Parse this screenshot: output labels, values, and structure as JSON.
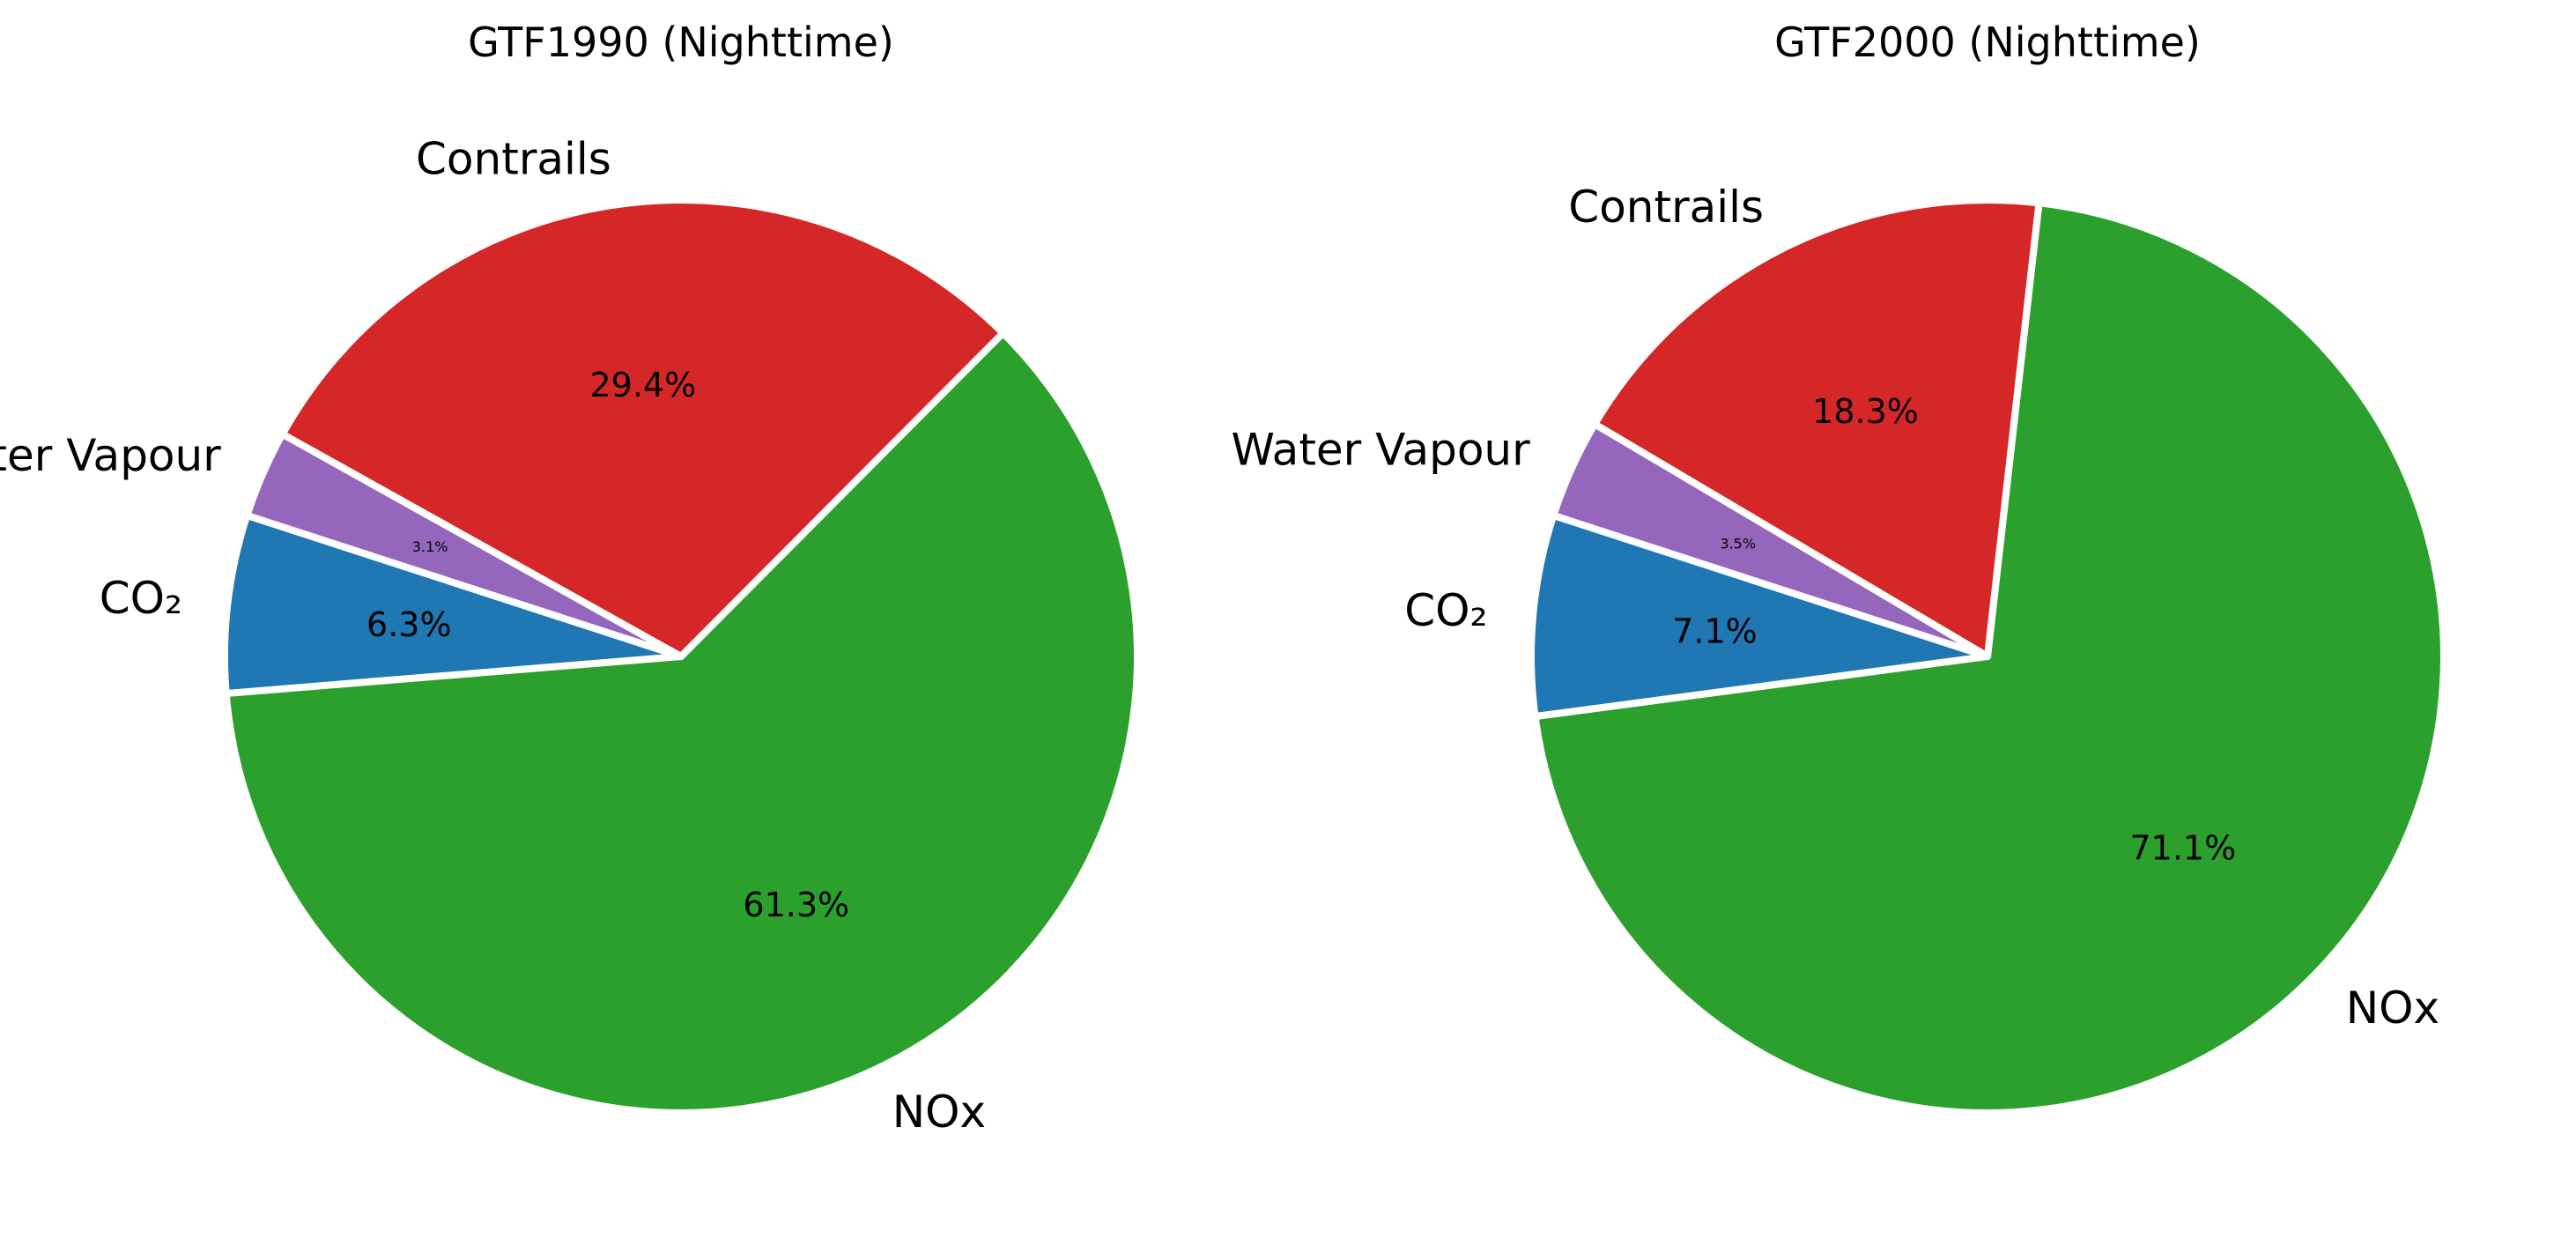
{
  "chart_data": [
    {
      "type": "pie",
      "title": "GTF1990 (Nighttime)",
      "start_angle_deg": 162,
      "direction": "counterclockwise",
      "slices": [
        {
          "label": "CO₂",
          "value": 6.3,
          "pct_label": "6.3%",
          "color": "#1f77b4"
        },
        {
          "label": "NOx",
          "value": 61.3,
          "pct_label": "61.3%",
          "color": "#2ca02c"
        },
        {
          "label": "Contrails",
          "value": 29.4,
          "pct_label": "29.4%",
          "color": "#d62728"
        },
        {
          "label": "Water Vapour",
          "value": 3.1,
          "pct_label": "3.1%",
          "color": "#9467bd"
        }
      ]
    },
    {
      "type": "pie",
      "title": "GTF2000 (Nighttime)",
      "start_angle_deg": 162,
      "direction": "counterclockwise",
      "slices": [
        {
          "label": "CO₂",
          "value": 7.1,
          "pct_label": "7.1%",
          "color": "#1f77b4"
        },
        {
          "label": "NOx",
          "value": 71.1,
          "pct_label": "71.1%",
          "color": "#2ca02c"
        },
        {
          "label": "Contrails",
          "value": 18.3,
          "pct_label": "18.3%",
          "color": "#d62728"
        },
        {
          "label": "Water Vapour",
          "value": 3.5,
          "pct_label": "3.5%",
          "color": "#9467bd"
        }
      ]
    }
  ]
}
